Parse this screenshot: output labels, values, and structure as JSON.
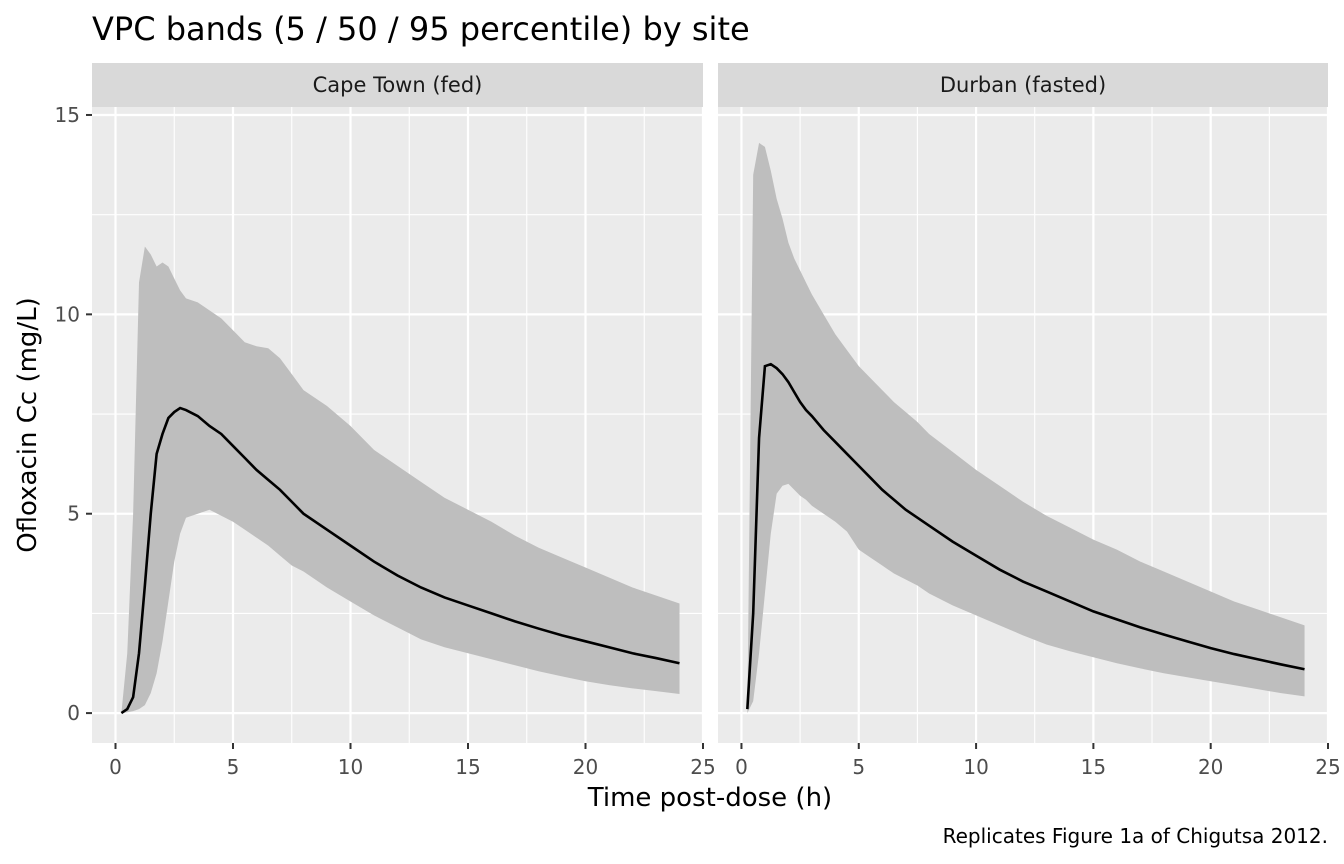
{
  "chart_data": {
    "type": "area",
    "title": "VPC bands (5 / 50 / 95 percentile) by site",
    "xlabel": "Time post-dose (h)",
    "ylabel": "Ofloxacin Cc (mg/L)",
    "caption": "Replicates Figure 1a of Chigutsa 2012.",
    "xlim": [
      -1,
      25
    ],
    "ylim": [
      -0.75,
      15.2
    ],
    "x_ticks": [
      0,
      5,
      10,
      15,
      20,
      25
    ],
    "y_ticks": [
      0,
      5,
      10,
      15
    ],
    "grid": true,
    "legend": "none",
    "colors": {
      "band": "#bebebe",
      "median": "#000000",
      "panel_bg": "#ebebeb",
      "strip_bg": "#d9d9d9",
      "grid": "#ffffff"
    },
    "panels": [
      {
        "label": "Cape Town (fed)",
        "x": [
          0.25,
          0.5,
          0.75,
          1.0,
          1.25,
          1.5,
          1.75,
          2.0,
          2.25,
          2.5,
          2.75,
          3.0,
          3.5,
          4.0,
          4.5,
          5.0,
          5.5,
          6.0,
          6.5,
          7.0,
          7.5,
          8.0,
          9.0,
          10.0,
          11.0,
          12.0,
          13.0,
          14.0,
          15.0,
          16.0,
          17.0,
          18.0,
          19.0,
          20.0,
          21.0,
          22.0,
          23.0,
          24.0
        ],
        "p05": [
          0.0,
          0.02,
          0.05,
          0.1,
          0.2,
          0.5,
          1.0,
          1.8,
          2.8,
          3.8,
          4.5,
          4.9,
          5.0,
          5.1,
          4.95,
          4.8,
          4.6,
          4.4,
          4.2,
          3.95,
          3.7,
          3.55,
          3.15,
          2.8,
          2.45,
          2.15,
          1.85,
          1.65,
          1.5,
          1.35,
          1.2,
          1.05,
          0.92,
          0.8,
          0.7,
          0.62,
          0.55,
          0.48
        ],
        "p50": [
          0.0,
          0.1,
          0.4,
          1.5,
          3.2,
          5.0,
          6.5,
          7.0,
          7.4,
          7.55,
          7.65,
          7.6,
          7.45,
          7.2,
          7.0,
          6.7,
          6.4,
          6.1,
          5.85,
          5.6,
          5.3,
          5.0,
          4.6,
          4.2,
          3.8,
          3.45,
          3.15,
          2.9,
          2.7,
          2.5,
          2.3,
          2.12,
          1.95,
          1.8,
          1.65,
          1.5,
          1.38,
          1.25
        ],
        "p95": [
          0.0,
          1.5,
          5.0,
          10.8,
          11.7,
          11.5,
          11.2,
          11.3,
          11.2,
          10.9,
          10.6,
          10.4,
          10.3,
          10.1,
          9.9,
          9.6,
          9.3,
          9.2,
          9.15,
          8.9,
          8.5,
          8.1,
          7.7,
          7.2,
          6.6,
          6.2,
          5.8,
          5.4,
          5.1,
          4.8,
          4.45,
          4.15,
          3.9,
          3.65,
          3.4,
          3.15,
          2.95,
          2.75
        ]
      },
      {
        "label": "Durban (fasted)",
        "x": [
          0.25,
          0.5,
          0.75,
          1.0,
          1.25,
          1.5,
          1.75,
          2.0,
          2.25,
          2.5,
          2.75,
          3.0,
          3.5,
          4.0,
          4.5,
          5.0,
          5.5,
          6.0,
          6.5,
          7.0,
          7.5,
          8.0,
          9.0,
          10.0,
          11.0,
          12.0,
          13.0,
          14.0,
          15.0,
          16.0,
          17.0,
          18.0,
          19.0,
          20.0,
          21.0,
          22.0,
          23.0,
          24.0
        ],
        "p05": [
          0.0,
          0.3,
          1.5,
          3.0,
          4.5,
          5.5,
          5.7,
          5.75,
          5.6,
          5.45,
          5.35,
          5.2,
          5.0,
          4.8,
          4.55,
          4.1,
          3.9,
          3.7,
          3.5,
          3.35,
          3.2,
          3.0,
          2.7,
          2.45,
          2.2,
          1.95,
          1.72,
          1.55,
          1.4,
          1.25,
          1.12,
          1.0,
          0.9,
          0.8,
          0.7,
          0.6,
          0.5,
          0.42
        ],
        "p50": [
          0.1,
          2.5,
          6.9,
          8.7,
          8.75,
          8.65,
          8.5,
          8.3,
          8.05,
          7.8,
          7.6,
          7.45,
          7.1,
          6.8,
          6.5,
          6.2,
          5.9,
          5.6,
          5.35,
          5.1,
          4.9,
          4.7,
          4.3,
          3.95,
          3.6,
          3.3,
          3.05,
          2.8,
          2.55,
          2.35,
          2.15,
          1.97,
          1.8,
          1.63,
          1.48,
          1.35,
          1.22,
          1.1
        ],
        "p95": [
          0.0,
          13.5,
          14.3,
          14.2,
          13.6,
          12.9,
          12.4,
          11.8,
          11.4,
          11.1,
          10.8,
          10.5,
          10.0,
          9.5,
          9.1,
          8.7,
          8.4,
          8.1,
          7.8,
          7.55,
          7.3,
          7.0,
          6.55,
          6.1,
          5.7,
          5.3,
          4.95,
          4.65,
          4.35,
          4.1,
          3.8,
          3.55,
          3.3,
          3.05,
          2.8,
          2.6,
          2.4,
          2.2
        ]
      }
    ]
  }
}
